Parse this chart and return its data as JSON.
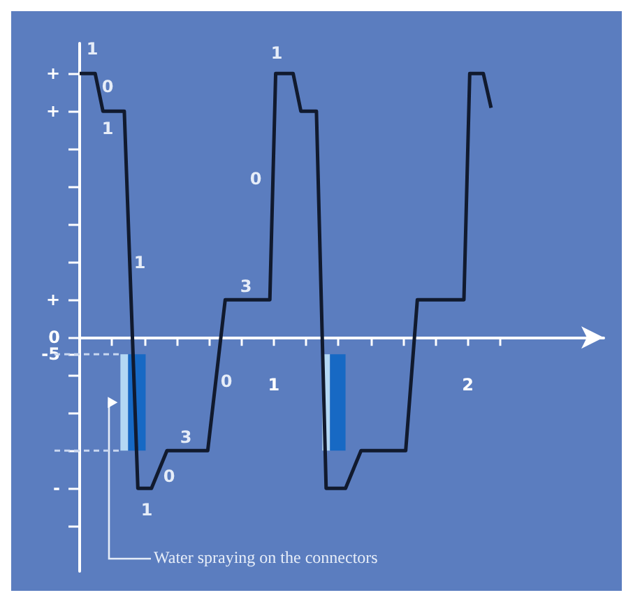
{
  "chart_data": {
    "type": "line",
    "x": [
      0,
      0.08,
      0.12,
      0.23,
      0.3,
      0.37,
      0.45,
      0.66,
      0.75,
      0.98,
      1.01,
      1.1,
      1.14,
      1.22,
      1.27,
      1.37,
      1.45,
      1.68,
      1.74,
      1.98,
      2.01,
      2.08,
      2.12
    ],
    "series": [
      {
        "color": "#111a2e",
        "values": [
          78.75,
          78.75,
          67.5,
          67.5,
          -45,
          -45,
          -33.75,
          -33.75,
          11.25,
          11.25,
          78.75,
          78.75,
          67.5,
          67.5,
          -45,
          -45,
          -33.75,
          -33.75,
          11.25,
          11.25,
          78.75,
          78.75,
          68.5
        ]
      }
    ],
    "xlim": [
      0,
      2.7
    ],
    "ylim": [
      -69.75,
      87.75
    ],
    "xticks": [
      {
        "value": 0,
        "label": null
      },
      {
        "value": 0.1667,
        "label": null
      },
      {
        "value": 0.3333,
        "label": null
      },
      {
        "value": 0.5,
        "label": null
      },
      {
        "value": 0.6667,
        "label": null
      },
      {
        "value": 0.8333,
        "label": null
      },
      1,
      {
        "value": 1.1667,
        "label": null
      },
      {
        "value": 1.3333,
        "label": null
      },
      {
        "value": 1.5,
        "label": null
      },
      {
        "value": 1.6667,
        "label": null
      },
      {
        "value": 1.8333,
        "label": null
      },
      2,
      {
        "value": 2.1667,
        "label": null
      }
    ],
    "yticks": [
      {
        "value": 78.75,
        "label": "+"
      },
      {
        "value": 67.5,
        "label": "+"
      },
      {
        "value": 56.25,
        "label": null
      },
      {
        "value": 45,
        "label": null
      },
      {
        "value": 33.75,
        "label": null
      },
      {
        "value": 22.5,
        "label": null
      },
      {
        "value": 11.25,
        "label": "+"
      },
      0,
      -5,
      {
        "value": -11.25,
        "label": null
      },
      {
        "value": -22.5,
        "label": null
      },
      {
        "value": -33.75,
        "label": null
      },
      {
        "value": -45,
        "label": "-"
      },
      {
        "value": -56.25,
        "label": null
      }
    ],
    "grid": false,
    "marker": "none",
    "line_style": "solid",
    "bands": [
      {
        "axis": "x",
        "from": 0.21,
        "to": 0.25,
        "color": "#b4d8f4"
      },
      {
        "axis": "x",
        "from": 0.25,
        "to": 0.34,
        "color": "#1769c4"
      },
      {
        "axis": "x",
        "from": 1.25,
        "to": 1.29,
        "color": "#b4d8f4"
      },
      {
        "axis": "x",
        "from": 1.29,
        "to": 1.37,
        "color": "#1769c4"
      }
    ],
    "annotations": [
      "1",
      "0",
      "1",
      "1",
      "1",
      "0",
      "3",
      "0",
      "3",
      "0",
      "1",
      "Water spraying on the connectors"
    ]
  }
}
